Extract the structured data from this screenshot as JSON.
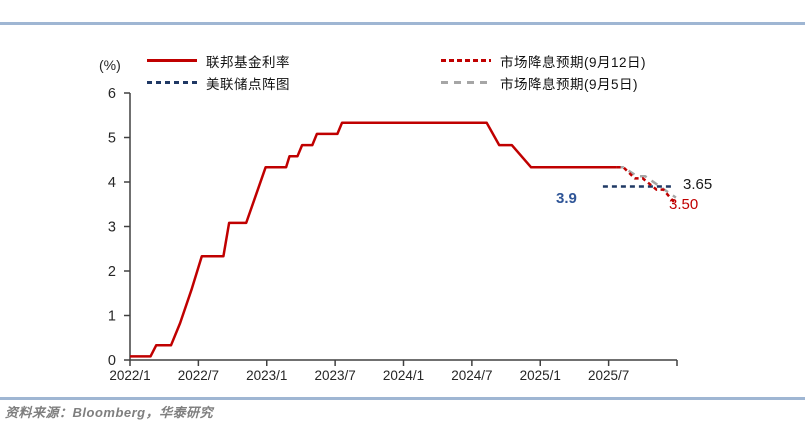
{
  "page": {
    "accent_rule_color": "#9FB6D3",
    "footer_source": "资料来源：Bloomberg，华泰研究"
  },
  "legend": {
    "items": [
      {
        "label": "联邦基金利率",
        "color": "#C00000",
        "style": "solid"
      },
      {
        "label": "美联储点阵图",
        "color": "#1F3864",
        "style": "dashed"
      },
      {
        "label": "市场降息预期(9月12日)",
        "color": "#C00000",
        "style": "dashed-dense"
      },
      {
        "label": "市场降息预期(9月5日)",
        "color": "#A6A6A6",
        "style": "dashed-long"
      }
    ]
  },
  "chart_data": {
    "type": "line",
    "title": "",
    "xlabel": "",
    "ylabel": "(%)",
    "ylim": [
      0,
      6
    ],
    "yticks": [
      0,
      1,
      2,
      3,
      4,
      5,
      6
    ],
    "grid": false,
    "legend_position": "top",
    "x_axis_note": "x in months since 2022/1; axis runs 2022/1 to 2026/1",
    "xlim_months": [
      0,
      48
    ],
    "xticks": [
      {
        "m": 0,
        "label": "2022/1"
      },
      {
        "m": 6,
        "label": "2022/7"
      },
      {
        "m": 12,
        "label": "2023/1"
      },
      {
        "m": 18,
        "label": "2023/7"
      },
      {
        "m": 24,
        "label": "2024/1"
      },
      {
        "m": 30,
        "label": "2024/7"
      },
      {
        "m": 36,
        "label": "2025/1"
      },
      {
        "m": 42,
        "label": "2025/7"
      }
    ],
    "series": [
      {
        "name": "联邦基金利率",
        "color": "#C00000",
        "style": "solid",
        "points": [
          [
            0,
            0.08
          ],
          [
            1.8,
            0.08
          ],
          [
            2.3,
            0.33
          ],
          [
            3.6,
            0.33
          ],
          [
            4.4,
            0.83
          ],
          [
            5.4,
            1.58
          ],
          [
            6.3,
            2.33
          ],
          [
            8.2,
            2.33
          ],
          [
            8.7,
            3.08
          ],
          [
            10.2,
            3.08
          ],
          [
            11.9,
            4.33
          ],
          [
            13.7,
            4.33
          ],
          [
            14.0,
            4.58
          ],
          [
            14.7,
            4.58
          ],
          [
            15.1,
            4.83
          ],
          [
            16.0,
            4.83
          ],
          [
            16.4,
            5.08
          ],
          [
            18.2,
            5.08
          ],
          [
            18.6,
            5.33
          ],
          [
            31.3,
            5.33
          ],
          [
            32.4,
            4.83
          ],
          [
            33.5,
            4.83
          ],
          [
            35.2,
            4.33
          ],
          [
            42.7,
            4.33
          ]
        ]
      },
      {
        "name": "美联储点阵图",
        "color": "#1F3864",
        "style": "dashed",
        "points": [
          [
            41.5,
            3.9
          ],
          [
            47.6,
            3.9
          ]
        ]
      },
      {
        "name": "市场降息预期(9月12日)",
        "color": "#C00000",
        "style": "dashed-dense",
        "points": [
          [
            42.7,
            4.33
          ],
          [
            43.3,
            4.33
          ],
          [
            44.3,
            4.08
          ],
          [
            45.0,
            4.08
          ],
          [
            46.2,
            3.83
          ],
          [
            46.8,
            3.83
          ],
          [
            47.9,
            3.5
          ]
        ]
      },
      {
        "name": "市场降息预期(9月5日)",
        "color": "#A6A6A6",
        "style": "dashed-long",
        "points": [
          [
            42.7,
            4.33
          ],
          [
            43.3,
            4.33
          ],
          [
            44.5,
            4.13
          ],
          [
            45.2,
            4.13
          ],
          [
            46.5,
            3.9
          ],
          [
            47.9,
            3.65
          ]
        ]
      }
    ],
    "annotations": [
      {
        "text": "3.9",
        "color": "#2F5597",
        "refers_to": "美联储点阵图"
      },
      {
        "text": "3.65",
        "color": "#1a1a1a",
        "refers_to": "市场降息预期(9月5日)终点"
      },
      {
        "text": "3.50",
        "color": "#C00000",
        "refers_to": "市场降息预期(9月12日)终点"
      }
    ]
  }
}
